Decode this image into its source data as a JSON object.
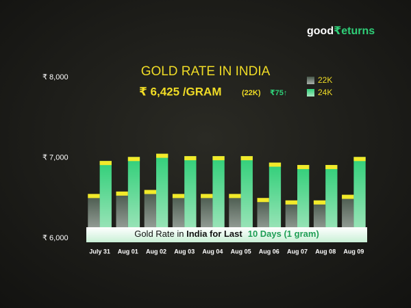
{
  "logo": {
    "left": "good",
    "right": "₹eturns"
  },
  "chart_data": {
    "type": "bar",
    "title": "GOLD RATE IN INDIA",
    "headline_rate": "₹ 6,425 /GRAM",
    "headline_karat": "(22K)",
    "headline_change": "₹75↑",
    "caption_parts": [
      "Gold Rate in ",
      "India for Last",
      "10 Days (1 gram)"
    ],
    "categories": [
      "July 31",
      "Aug 01",
      "Aug 02",
      "Aug 03",
      "Aug 04",
      "Aug 05",
      "Aug 06",
      "Aug 07",
      "Aug 08",
      "Aug 09"
    ],
    "series": [
      {
        "name": "22K",
        "color": "#5a6b5e",
        "values": [
          6550,
          6580,
          6600,
          6550,
          6550,
          6550,
          6500,
          6470,
          6470,
          6540
        ]
      },
      {
        "name": "24K",
        "color": "#2fcf78",
        "values": [
          6960,
          7010,
          7050,
          7020,
          7020,
          7020,
          6940,
          6910,
          6910,
          7010
        ]
      }
    ],
    "cap_color": "#f2ea2a",
    "ylim": [
      6000,
      8000
    ],
    "yticks": [
      {
        "value": 6000,
        "label": "₹ 6,000"
      },
      {
        "value": 7000,
        "label": "₹ 7,000"
      },
      {
        "value": 8000,
        "label": "₹ 8,000"
      }
    ],
    "legend": "top-right"
  }
}
